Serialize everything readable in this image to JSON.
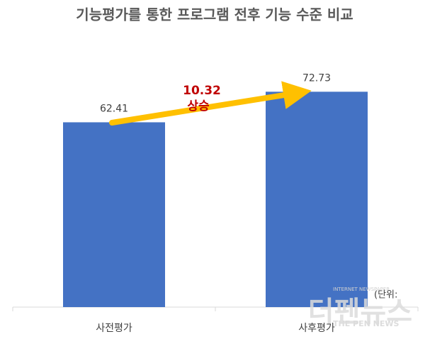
{
  "chart_data": {
    "type": "bar",
    "title": "기능평가를 통한 프로그램 전후 기능 수준 비교",
    "categories": [
      "사전평가",
      "사후평가"
    ],
    "values": [
      62.41,
      72.73
    ],
    "color": "#4472c4",
    "ylim": [
      0,
      80
    ],
    "annotation": [
      "10.32",
      "상승"
    ],
    "unit_note": "(단위:",
    "watermark": {
      "name": "더펜뉴스",
      "subtitle": "THE PEN NEWS",
      "tag": "INTERNET NEWSPAPER"
    }
  }
}
